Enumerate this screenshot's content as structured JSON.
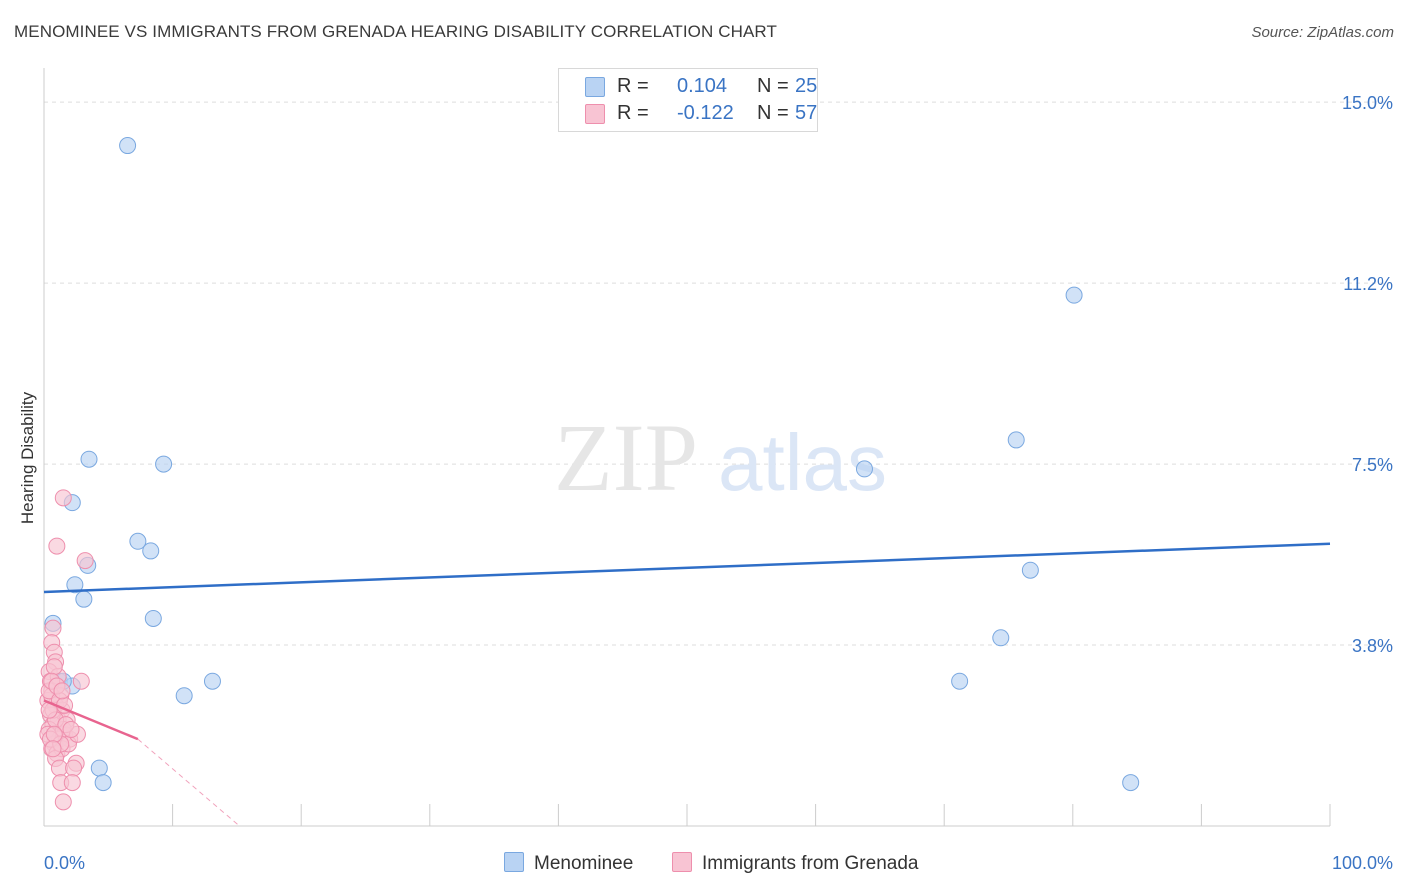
{
  "title": "MENOMINEE VS IMMIGRANTS FROM GRENADA HEARING DISABILITY CORRELATION CHART",
  "source": "Source: ZipAtlas.com",
  "watermark": {
    "zip": "ZIP",
    "atlas": "atlas"
  },
  "colors": {
    "menominee_fill": "#b9d3f3",
    "menominee_stroke": "#7aa8e0",
    "menominee_line": "#2f6ec7",
    "grenada_fill": "#f8c4d3",
    "grenada_stroke": "#ee8fad",
    "grenada_line": "#e8648f",
    "tick_label": "#3a74c4"
  },
  "legend": {
    "rows": [
      {
        "r_label": "R =",
        "r_value": "0.104",
        "n_label": "N =",
        "n_value": "25"
      },
      {
        "r_label": "R =",
        "r_value": "-0.122",
        "n_label": "N =",
        "n_value": "57"
      }
    ]
  },
  "bottom_legend": {
    "menominee": "Menominee",
    "grenada": "Immigrants from Grenada"
  },
  "chart_data": {
    "type": "scatter",
    "ylabel": "Hearing Disability",
    "x_tick_labels": [
      "0.0%",
      "100.0%"
    ],
    "y_tick_labels": [
      "3.8%",
      "7.5%",
      "11.2%",
      "15.0%"
    ],
    "y_ticks": [
      3.75,
      7.5,
      11.25,
      15.0
    ],
    "xlim": [
      0,
      100
    ],
    "ylim": [
      0,
      15.5
    ],
    "grid": true,
    "legend_position": "top-center",
    "series": [
      {
        "name": "Menominee",
        "points": [
          [
            6.5,
            14.1
          ],
          [
            1.2,
            3.0
          ],
          [
            2.2,
            2.9
          ],
          [
            3.5,
            7.6
          ],
          [
            2.2,
            6.7
          ],
          [
            2.4,
            5.0
          ],
          [
            3.1,
            4.7
          ],
          [
            3.4,
            5.4
          ],
          [
            0.7,
            4.2
          ],
          [
            7.3,
            5.9
          ],
          [
            9.3,
            7.5
          ],
          [
            8.3,
            5.7
          ],
          [
            8.5,
            4.3
          ],
          [
            10.9,
            2.7
          ],
          [
            13.1,
            3.0
          ],
          [
            4.3,
            1.2
          ],
          [
            4.6,
            0.9
          ],
          [
            63.8,
            7.4
          ],
          [
            80.1,
            11.0
          ],
          [
            75.6,
            8.0
          ],
          [
            76.7,
            5.3
          ],
          [
            74.4,
            3.9
          ],
          [
            71.2,
            3.0
          ],
          [
            84.5,
            0.9
          ],
          [
            1.5,
            3.0
          ]
        ],
        "trend": {
          "x1": 0,
          "y1": 4.85,
          "x2": 100,
          "y2": 5.85
        }
      },
      {
        "name": "Immigrants from Grenada",
        "points": [
          [
            1.5,
            6.8
          ],
          [
            1.0,
            5.8
          ],
          [
            3.2,
            5.5
          ],
          [
            0.7,
            4.1
          ],
          [
            0.6,
            3.8
          ],
          [
            0.8,
            3.6
          ],
          [
            0.9,
            3.4
          ],
          [
            0.4,
            3.2
          ],
          [
            0.5,
            3.0
          ],
          [
            1.0,
            2.9
          ],
          [
            2.9,
            3.0
          ],
          [
            0.6,
            2.8
          ],
          [
            1.3,
            2.7
          ],
          [
            0.3,
            2.6
          ],
          [
            0.9,
            2.5
          ],
          [
            1.4,
            2.4
          ],
          [
            0.5,
            2.3
          ],
          [
            1.1,
            2.2
          ],
          [
            0.7,
            2.1
          ],
          [
            0.4,
            2.0
          ],
          [
            1.6,
            1.9
          ],
          [
            1.2,
            1.8
          ],
          [
            0.8,
            1.7
          ],
          [
            2.0,
            1.8
          ],
          [
            0.6,
            1.6
          ],
          [
            1.0,
            1.5
          ],
          [
            1.4,
            1.6
          ],
          [
            0.9,
            1.4
          ],
          [
            2.5,
            1.3
          ],
          [
            1.2,
            1.2
          ],
          [
            2.3,
            1.2
          ],
          [
            1.3,
            0.9
          ],
          [
            2.2,
            0.9
          ],
          [
            1.5,
            0.5
          ],
          [
            0.6,
            2.7
          ],
          [
            1.8,
            2.2
          ],
          [
            0.3,
            1.9
          ],
          [
            1.1,
            3.1
          ],
          [
            0.7,
            2.4
          ],
          [
            1.5,
            2.0
          ],
          [
            0.4,
            2.8
          ],
          [
            1.9,
            1.7
          ],
          [
            0.8,
            3.3
          ],
          [
            1.2,
            2.6
          ],
          [
            0.5,
            1.8
          ],
          [
            1.6,
            2.5
          ],
          [
            2.6,
            1.9
          ],
          [
            0.9,
            2.2
          ],
          [
            1.3,
            1.7
          ],
          [
            0.6,
            3.0
          ],
          [
            1.0,
            2.9
          ],
          [
            0.4,
            2.4
          ],
          [
            1.7,
            2.1
          ],
          [
            0.8,
            1.9
          ],
          [
            1.4,
            2.8
          ],
          [
            2.1,
            2.0
          ],
          [
            0.7,
            1.6
          ]
        ],
        "trend": {
          "x1": 0,
          "y1": 2.6,
          "x2": 7.3,
          "y2": 1.8
        },
        "trend_dashed": {
          "x1": 7.3,
          "y1": 1.8,
          "x2": 15.2,
          "y2": 0.0
        }
      }
    ]
  }
}
